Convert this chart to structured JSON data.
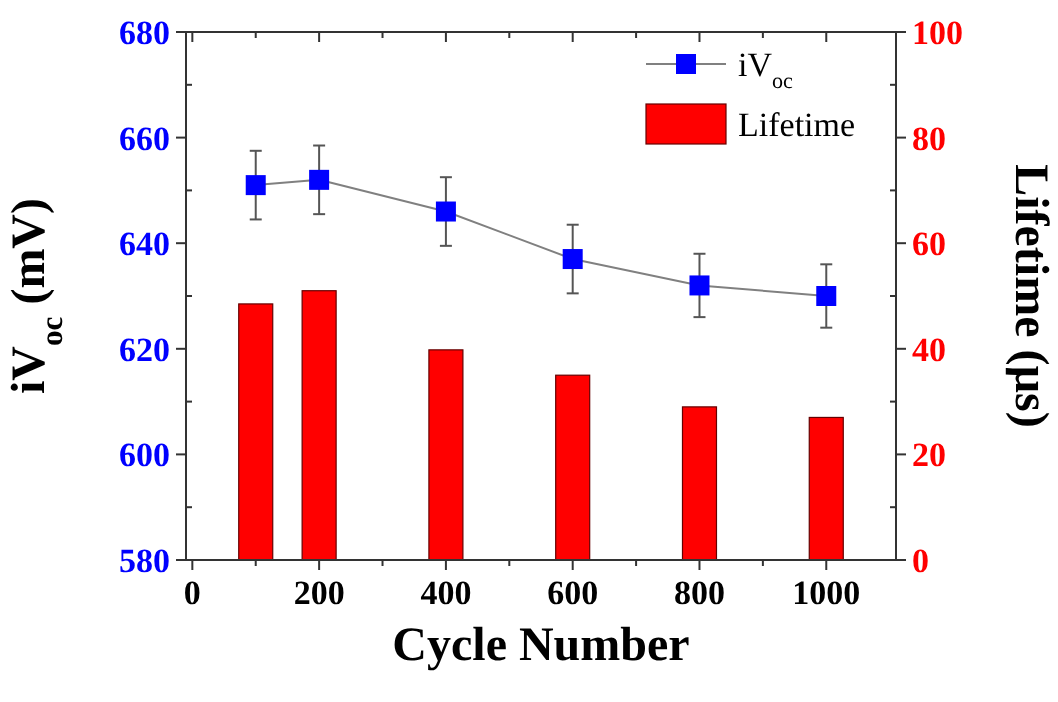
{
  "chart_data": {
    "type": "line",
    "xlabel": "Cycle Number",
    "ylabel": "iV$_{oc}$ (mV)",
    "y2label": "Lifetime (µs)",
    "x": [
      100,
      200,
      400,
      600,
      800,
      1000
    ],
    "xlim": [
      -10,
      1110
    ],
    "xticks": [
      0,
      200,
      400,
      600,
      800,
      1000
    ],
    "ylim": [
      580,
      680
    ],
    "yticks": [
      580,
      600,
      620,
      640,
      660,
      680
    ],
    "y2lim": [
      0,
      100
    ],
    "y2ticks": [
      0,
      20,
      40,
      60,
      80,
      100
    ],
    "legend": "top right",
    "marker": "square",
    "line_style": "solid",
    "grid": false,
    "series": [
      {
        "name": "iV$_{oc}$",
        "color": "#0000ff",
        "values": [
          651,
          652,
          646,
          637,
          632,
          630
        ],
        "errors": [
          6.5,
          6.5,
          6.5,
          6.5,
          6,
          6
        ]
      },
      {
        "name": "Lifetime",
        "type": "bar",
        "axis": "y2",
        "color": "#ff0000",
        "values": [
          48.5,
          51,
          39.8,
          35,
          29,
          27
        ]
      }
    ]
  }
}
